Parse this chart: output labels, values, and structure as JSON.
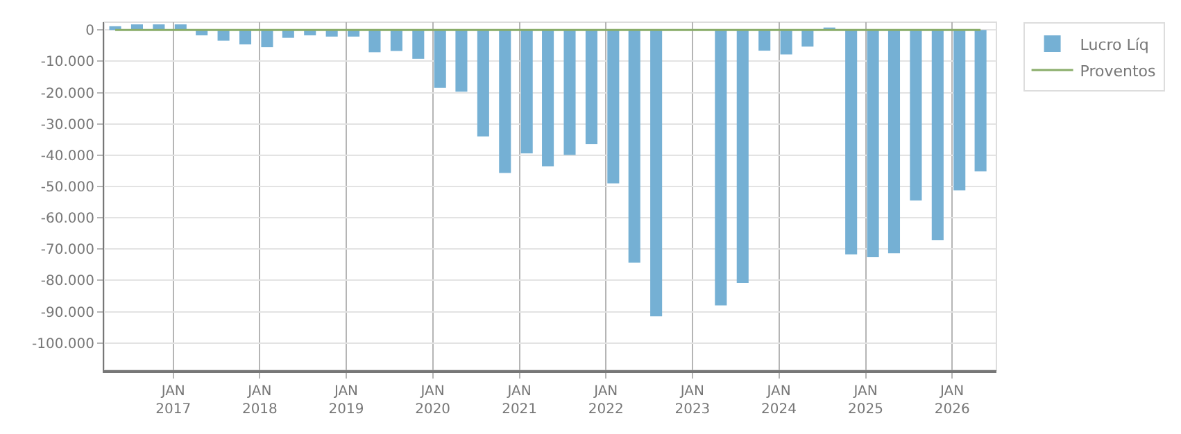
{
  "chart_data": {
    "type": "bar",
    "x": [
      "2016-05",
      "2016-08",
      "2016-11",
      "2017-02",
      "2017-05",
      "2017-08",
      "2017-11",
      "2018-02",
      "2018-05",
      "2018-08",
      "2018-11",
      "2019-02",
      "2019-05",
      "2019-08",
      "2019-11",
      "2020-02",
      "2020-05",
      "2020-08",
      "2020-11",
      "2021-02",
      "2021-05",
      "2021-08",
      "2021-11",
      "2022-02",
      "2022-05",
      "2022-08",
      "2022-11",
      "2023-02",
      "2023-05",
      "2023-08",
      "2023-11",
      "2024-02",
      "2024-05",
      "2024-08",
      "2024-11",
      "2025-02",
      "2025-05",
      "2025-08",
      "2025-11",
      "2026-02",
      "2026-05"
    ],
    "series": [
      {
        "name": "Lucro Líq",
        "color": "#75b0d4",
        "values": [
          1200,
          1800,
          1800,
          1800,
          -1700,
          -3400,
          -4600,
          -5500,
          -2500,
          -1700,
          -2100,
          -2100,
          -7100,
          -6700,
          -9200,
          -18500,
          -19700,
          -34000,
          -45700,
          -39400,
          -43600,
          -39900,
          -36500,
          -49000,
          -74300,
          -91500,
          null,
          null,
          -88000,
          -80800,
          -6600,
          -7800,
          -5300,
          800,
          -71700,
          -72600,
          -71300,
          -54500,
          -67100,
          -51200,
          -45200
        ]
      },
      {
        "name": "Proventos",
        "color": "#8aad6a",
        "type": "line",
        "values": [
          0,
          0,
          0,
          0,
          0,
          0,
          0,
          0,
          0,
          0,
          0,
          0,
          0,
          0,
          0,
          0,
          0,
          0,
          0,
          0,
          0,
          0,
          0,
          0,
          0,
          0,
          0,
          0,
          0,
          0,
          0,
          0,
          0,
          0,
          0,
          0,
          0,
          0,
          0,
          0,
          0
        ]
      }
    ],
    "xlim": [
      "2016-03-15",
      "2026-07-07"
    ],
    "xticks": [
      {
        "value": "2017-01",
        "label": "JAN\n2017"
      },
      {
        "value": "2018-01",
        "label": "JAN\n2018"
      },
      {
        "value": "2019-01",
        "label": "JAN\n2019"
      },
      {
        "value": "2020-01",
        "label": "JAN\n2020"
      },
      {
        "value": "2021-01",
        "label": "JAN\n2021"
      },
      {
        "value": "2022-01",
        "label": "JAN\n2022"
      },
      {
        "value": "2023-01",
        "label": "JAN\n2023"
      },
      {
        "value": "2024-01",
        "label": "JAN\n2024"
      },
      {
        "value": "2025-01",
        "label": "JAN\n2025"
      },
      {
        "value": "2026-01",
        "label": "JAN\n2026"
      }
    ],
    "ylim": [
      -108700,
      2500
    ],
    "yticks": [
      0,
      {
        "value": -10000,
        "label": "-10.000"
      },
      {
        "value": -20000,
        "label": "-20.000"
      },
      {
        "value": -30000,
        "label": "-30.000"
      },
      {
        "value": -40000,
        "label": "-40.000"
      },
      {
        "value": -50000,
        "label": "-50.000"
      },
      {
        "value": -60000,
        "label": "-60.000"
      },
      {
        "value": -70000,
        "label": "-70.000"
      },
      {
        "value": -80000,
        "label": "-80.000"
      },
      {
        "value": -90000,
        "label": "-90.000"
      },
      {
        "value": -100000,
        "label": "-100.000"
      }
    ],
    "grid": true,
    "legend": "top right"
  }
}
